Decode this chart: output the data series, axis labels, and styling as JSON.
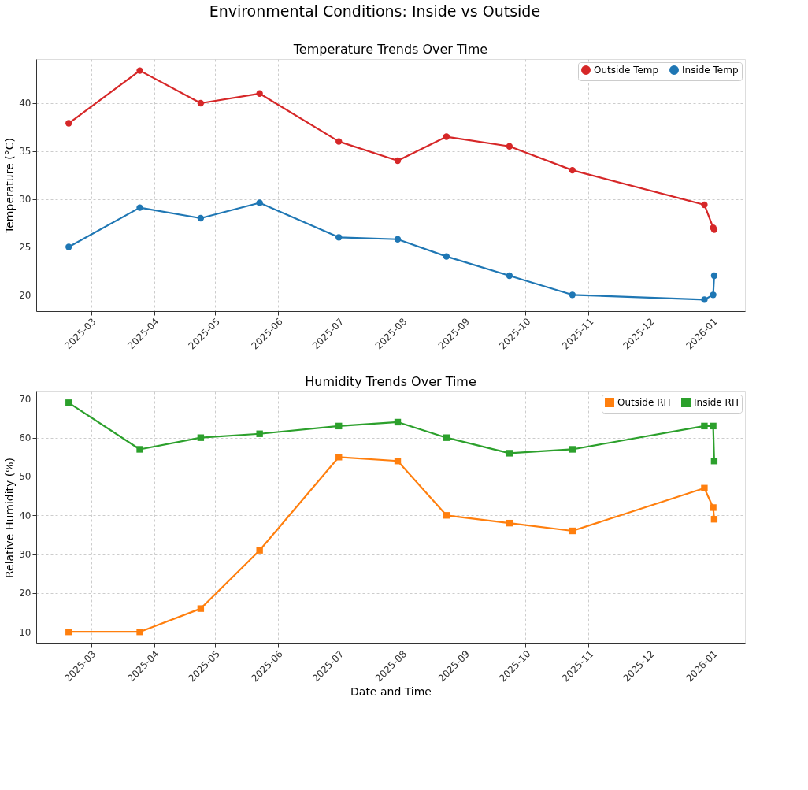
{
  "chart_data": [
    {
      "type": "line",
      "title": "Environmental Conditions: Inside vs Outside",
      "subtitle": "Temperature Trends Over Time",
      "ylabel": "Temperature (°C)",
      "x": [
        "2025-02-18",
        "2025-03-25",
        "2025-04-24",
        "2025-05-23",
        "2025-07-01",
        "2025-07-30",
        "2025-08-23",
        "2025-09-23",
        "2025-10-24",
        "2025-12-28",
        "2026-01-01T08:00",
        "2026-01-01T20:00"
      ],
      "series": [
        {
          "name": "Outside Temp",
          "color": "#d62728",
          "values": [
            37.9,
            43.4,
            40,
            41,
            36,
            34,
            36.5,
            35.5,
            33,
            29.4,
            27,
            26.8
          ]
        },
        {
          "name": "Inside Temp",
          "color": "#1f77b4",
          "values": [
            25,
            29.1,
            28,
            29.6,
            26,
            25.8,
            24,
            22,
            20,
            19.5,
            20,
            22
          ]
        }
      ],
      "xlim": [
        "2025-02-02",
        "2026-01-17"
      ],
      "xticks": [
        "2025-03",
        "2025-04",
        "2025-05",
        "2025-06",
        "2025-07",
        "2025-08",
        "2025-09",
        "2025-10",
        "2025-11",
        "2025-12",
        "2026-01"
      ],
      "ylim": [
        18.3,
        44.6
      ],
      "yticks": [
        20,
        25,
        30,
        35,
        40
      ],
      "grid": true,
      "legend": "top right",
      "marker": "circle",
      "line_style": "solid"
    },
    {
      "type": "line",
      "title": "Humidity Trends Over Time",
      "xlabel": "Date and Time",
      "ylabel": "Relative Humidity (%)",
      "x": [
        "2025-02-18",
        "2025-03-25",
        "2025-04-24",
        "2025-05-23",
        "2025-07-01",
        "2025-07-30",
        "2025-08-23",
        "2025-09-23",
        "2025-10-24",
        "2025-12-28",
        "2026-01-01T08:00",
        "2026-01-01T20:00"
      ],
      "series": [
        {
          "name": "Outside RH",
          "color": "#ff7f0e",
          "values": [
            10,
            10,
            16,
            31,
            55,
            54,
            40,
            38,
            36,
            47,
            42,
            39
          ]
        },
        {
          "name": "Inside RH",
          "color": "#2ca02c",
          "values": [
            69,
            57,
            60,
            61,
            63,
            64,
            60,
            56,
            57,
            63,
            63,
            54
          ]
        }
      ],
      "xlim": [
        "2025-02-02",
        "2026-01-17"
      ],
      "xticks": [
        "2025-03",
        "2025-04",
        "2025-05",
        "2025-06",
        "2025-07",
        "2025-08",
        "2025-09",
        "2025-10",
        "2025-11",
        "2025-12",
        "2026-01"
      ],
      "ylim": [
        7,
        71.9
      ],
      "yticks": [
        10,
        20,
        30,
        40,
        50,
        60,
        70
      ],
      "grid": true,
      "legend": "top right",
      "marker": "square",
      "line_style": "solid"
    }
  ]
}
